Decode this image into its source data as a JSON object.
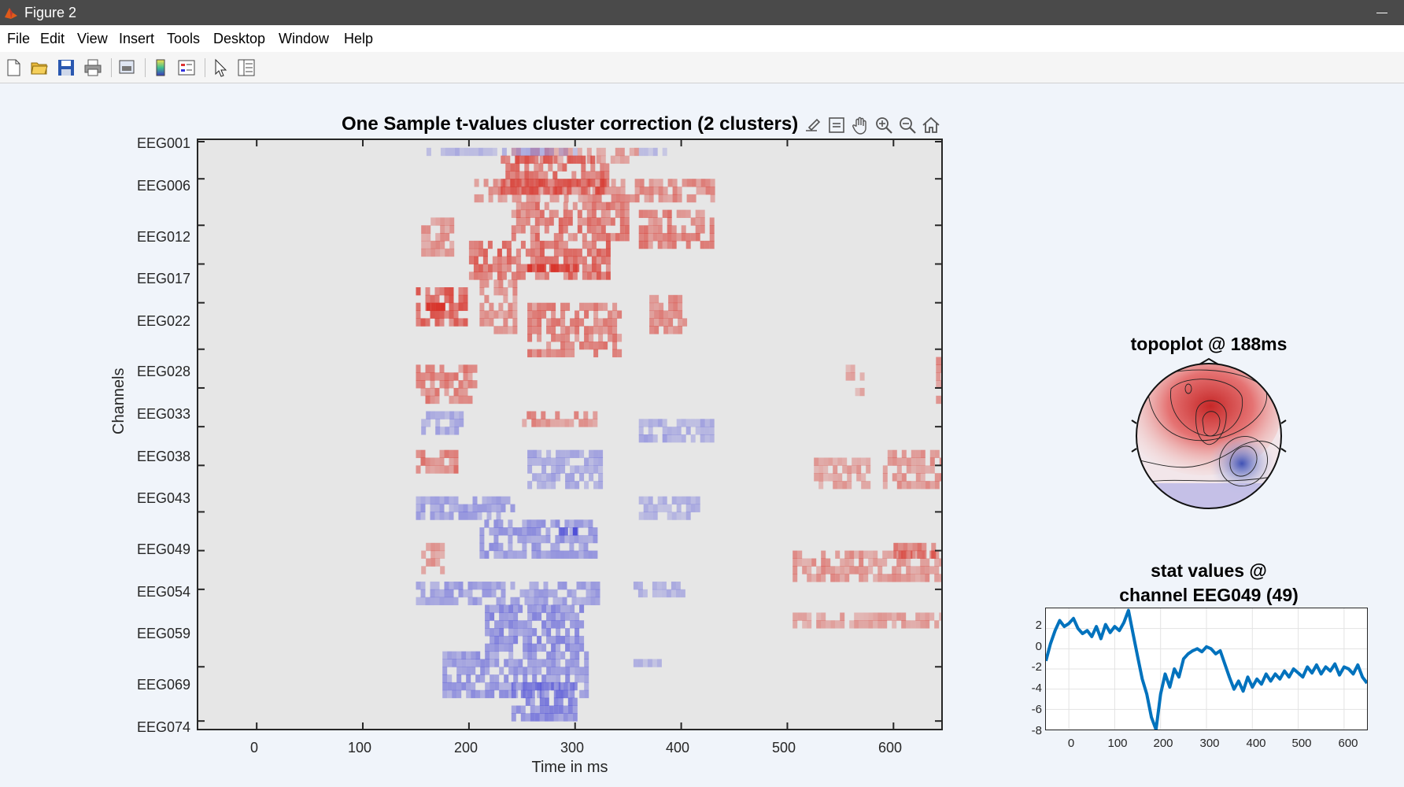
{
  "window": {
    "title": "Figure 2"
  },
  "menu": [
    "File",
    "Edit",
    "View",
    "Insert",
    "Tools",
    "Desktop",
    "Window",
    "Help"
  ],
  "toolbar": {
    "icons": [
      "new-figure-icon",
      "open-file-icon",
      "save-icon",
      "print-icon",
      "print-preview-icon",
      "colorbar-icon",
      "legend-icon",
      "select-pointer-icon",
      "property-inspector-icon"
    ]
  },
  "axes_toolbar": {
    "icons": [
      "brush-icon",
      "data-tips-icon",
      "pan-icon",
      "zoom-in-icon",
      "zoom-out-icon",
      "home-icon"
    ]
  },
  "heatmap": {
    "title": "One Sample t-values cluster correction (2 clusters)",
    "xlabel": "Time in ms",
    "ylabel": "Channels",
    "x_ticks": [
      "0",
      "100",
      "200",
      "300",
      "400",
      "500",
      "600"
    ],
    "y_ticks": [
      "EEG001",
      "EEG006",
      "EEG012",
      "EEG017",
      "EEG022",
      "EEG028",
      "EEG033",
      "EEG038",
      "EEG043",
      "EEG049",
      "EEG054",
      "EEG059",
      "EEG069",
      "EEG074"
    ],
    "colors": {
      "positive": "#d73027",
      "negative": "#4a4ad6",
      "background": "#e6e6e6"
    }
  },
  "topoplot": {
    "title": "topoplot @ 188ms"
  },
  "stat_plot": {
    "title_line1": "stat values @",
    "title_line2": "channel EEG049 (49)",
    "y_ticks": [
      "2",
      "0",
      "-2",
      "-4",
      "-6",
      "-8"
    ],
    "x_ticks": [
      "0",
      "100",
      "200",
      "300",
      "400",
      "500",
      "600"
    ],
    "line_color": "#0072bd"
  },
  "chart_data": [
    {
      "type": "heatmap",
      "title": "One Sample t-values cluster correction (2 clusters)",
      "xlabel": "Time in ms",
      "ylabel": "Channels",
      "xlim": [
        -55,
        645
      ],
      "x_ticks": [
        0,
        100,
        200,
        300,
        400,
        500,
        600
      ],
      "y_tick_labels": [
        "EEG001",
        "EEG006",
        "EEG012",
        "EEG017",
        "EEG022",
        "EEG028",
        "EEG033",
        "EEG038",
        "EEG043",
        "EEG049",
        "EEG054",
        "EEG059",
        "EEG069",
        "EEG074"
      ],
      "clusters": [
        {
          "sign": "positive",
          "t_range_ms": [
            150,
            430
          ],
          "channels": "EEG001-EEG043"
        },
        {
          "sign": "negative",
          "t_range_ms": [
            150,
            430
          ],
          "channels": "EEG038-EEG074"
        }
      ]
    },
    {
      "type": "line",
      "title": "stat values @ channel EEG049 (49)",
      "xlim": [
        -50,
        650
      ],
      "ylim": [
        -8,
        4
      ],
      "x": [
        -50,
        -40,
        -30,
        -20,
        -10,
        0,
        10,
        20,
        30,
        40,
        50,
        60,
        70,
        80,
        90,
        100,
        110,
        120,
        130,
        140,
        150,
        160,
        170,
        180,
        190,
        200,
        210,
        220,
        230,
        240,
        250,
        260,
        270,
        280,
        290,
        300,
        310,
        320,
        330,
        340,
        350,
        360,
        370,
        380,
        390,
        400,
        410,
        420,
        430,
        440,
        450,
        460,
        470,
        480,
        490,
        500,
        510,
        520,
        530,
        540,
        550,
        560,
        570,
        580,
        590,
        600,
        610,
        620,
        630,
        640,
        650
      ],
      "y": [
        -1.2,
        0.5,
        1.8,
        2.8,
        2.2,
        2.5,
        3.0,
        2.0,
        1.5,
        1.8,
        1.2,
        2.2,
        1.0,
        2.4,
        1.6,
        2.2,
        1.8,
        2.6,
        3.8,
        1.5,
        -0.8,
        -3.0,
        -4.5,
        -6.8,
        -8.0,
        -4.5,
        -2.5,
        -3.8,
        -2.0,
        -2.8,
        -1.0,
        -0.5,
        -0.2,
        0.0,
        -0.3,
        0.2,
        0.0,
        -0.5,
        -0.2,
        -1.5,
        -2.8,
        -4.0,
        -3.2,
        -4.2,
        -2.8,
        -3.8,
        -3.0,
        -3.5,
        -2.5,
        -3.2,
        -2.5,
        -3.0,
        -2.2,
        -2.8,
        -2.0,
        -2.4,
        -2.8,
        -1.8,
        -2.4,
        -1.6,
        -2.5,
        -1.8,
        -2.2,
        -1.5,
        -2.6,
        -1.8,
        -2.0,
        -2.5,
        -1.6,
        -2.8,
        -3.4
      ]
    }
  ]
}
